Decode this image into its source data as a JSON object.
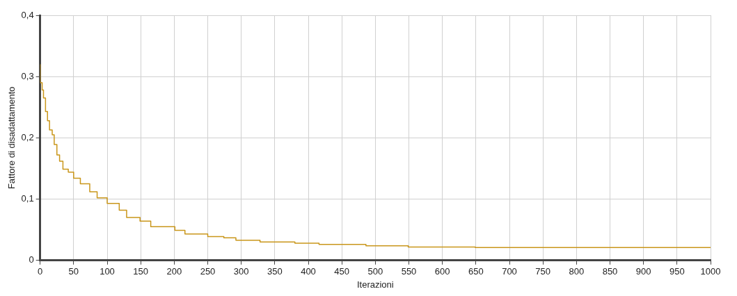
{
  "chart_data": {
    "type": "step",
    "xlabel": "Iterazioni",
    "ylabel": "Fattore di disadattamento",
    "series": [
      {
        "color": "#c9961a",
        "x": [
          0,
          3,
          5,
          8,
          11,
          14,
          18,
          21,
          25,
          29,
          34,
          42,
          50,
          60,
          74,
          85,
          100,
          118,
          129,
          149,
          165,
          201,
          216,
          250,
          274,
          292,
          328,
          380,
          416,
          486,
          549,
          649,
          783,
          1000
        ],
        "values": [
          0.32,
          0.29,
          0.278,
          0.265,
          0.243,
          0.228,
          0.213,
          0.205,
          0.189,
          0.172,
          0.162,
          0.149,
          0.144,
          0.134,
          0.125,
          0.112,
          0.102,
          0.093,
          0.082,
          0.07,
          0.064,
          0.055,
          0.049,
          0.043,
          0.039,
          0.037,
          0.033,
          0.03,
          0.028,
          0.026,
          0.024,
          0.022,
          0.021,
          0.021
        ]
      }
    ],
    "xlim": [
      0,
      1000
    ],
    "xticks": [
      0,
      50,
      100,
      150,
      200,
      250,
      300,
      350,
      400,
      450,
      500,
      550,
      600,
      650,
      700,
      750,
      800,
      850,
      900,
      950,
      1000
    ],
    "ylim": [
      0,
      0.4
    ],
    "yticks": [
      0,
      {
        "value": 0.1,
        "label": "0,1"
      },
      {
        "value": 0.2,
        "label": "0,2"
      },
      {
        "value": 0.3,
        "label": "0,3"
      },
      {
        "value": 0.4,
        "label": "0,4"
      }
    ],
    "grid": true,
    "legend": false,
    "marker": "none",
    "line_style": "solid"
  }
}
